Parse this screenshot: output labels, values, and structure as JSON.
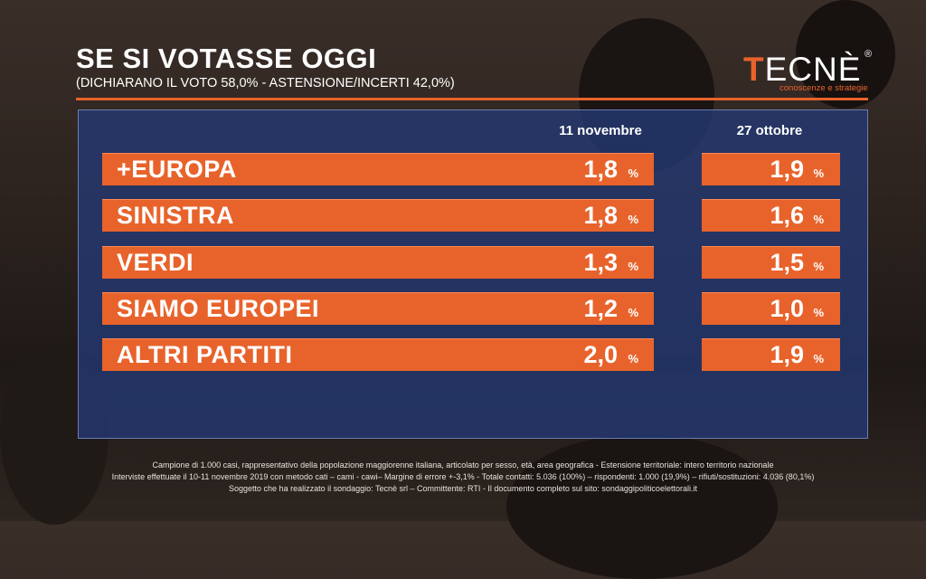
{
  "header": {
    "title": "SE SI VOTASSE OGGI",
    "subtitle": "(DICHIARANO IL VOTO 58,0% - ASTENSIONE/INCERTI 42,0%)"
  },
  "logo": {
    "first_letter": "T",
    "rest": "ECNÈ",
    "registered": "®",
    "tagline": "conoscenze e strategie"
  },
  "columns": {
    "current": "11 novembre",
    "previous": "27 ottobre"
  },
  "percent_sign": "%",
  "rows": [
    {
      "party": "+EUROPA",
      "current": "1,8",
      "previous": "1,9"
    },
    {
      "party": "SINISTRA",
      "current": "1,8",
      "previous": "1,6"
    },
    {
      "party": "VERDI",
      "current": "1,3",
      "previous": "1,5"
    },
    {
      "party": "SIAMO EUROPEI",
      "current": "1,2",
      "previous": "1,0"
    },
    {
      "party": "ALTRI PARTITI",
      "current": "2,0",
      "previous": "1,9"
    }
  ],
  "footer": {
    "line1": "Campione di 1.000 casi, rappresentativo della popolazione maggiorenne italiana, articolato per sesso, età, area geografica - Estensione territoriale: intero territorio nazionale",
    "line2": "Interviste effettuate il 10-11 novembre 2019 con metodo cati – cami - cawi– Margine di errore +-3,1% - Totale contatti: 5.036 (100%) – rispondenti: 1.000 (19,9%) – rifiuti/sostituzioni: 4.036 (80,1%)",
    "line3": "Soggetto che ha realizzato il sondaggio: Tecnè srl – Committente: RTI - Il documento completo sul sito: sondaggipoliticoelettorali.it"
  },
  "colors": {
    "accent": "#e8632b",
    "panel": "#243a76"
  }
}
